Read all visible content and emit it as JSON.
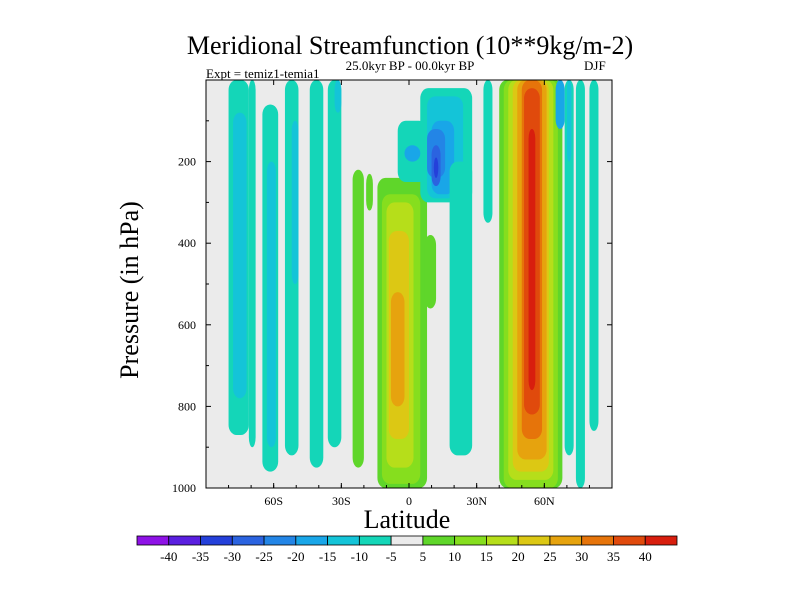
{
  "chart_data": {
    "type": "heatmap",
    "title": "Meridional Streamfunction (10**9kg/m-2)",
    "left_annotation": "Expt = temiz1-temia1",
    "center_annotation": "25.0kyr BP - 00.0kyr BP",
    "right_annotation": "DJF",
    "xlabel": "Latitude",
    "ylabel": "Pressure (in hPa)",
    "xlim": [
      -90,
      90
    ],
    "ylim": [
      1000,
      0
    ],
    "x_ticks": [
      {
        "value": -60,
        "label": "60S"
      },
      {
        "value": -30,
        "label": "30S"
      },
      {
        "value": 0,
        "label": "0"
      },
      {
        "value": 30,
        "label": "30N"
      },
      {
        "value": 60,
        "label": "60N"
      }
    ],
    "y_ticks": [
      {
        "value": 200,
        "label": "200"
      },
      {
        "value": 400,
        "label": "400"
      },
      {
        "value": 600,
        "label": "600"
      },
      {
        "value": 800,
        "label": "800"
      },
      {
        "value": 1000,
        "label": "1000"
      }
    ],
    "colorbar": {
      "levels": [
        "-40",
        "-35",
        "-30",
        "-25",
        "-20",
        "-15",
        "-10",
        "-5",
        "5",
        "10",
        "15",
        "20",
        "25",
        "30",
        "35",
        "40"
      ],
      "colors": [
        "#8e12e6",
        "#5a1fe0",
        "#2440da",
        "#2b63e0",
        "#2385e6",
        "#19a6e8",
        "#14c4d8",
        "#14d6b8",
        "#ebebeb",
        "#5fd62a",
        "#86de1e",
        "#b6de1a",
        "#dcc814",
        "#e6a30e",
        "#e6740a",
        "#e04a0c",
        "#d81e0e"
      ]
    },
    "contour_cells": [
      {
        "lat": [
          -80,
          -71
        ],
        "p": [
          0,
          870
        ],
        "bin": 7
      },
      {
        "lat": [
          -71,
          -68
        ],
        "p": [
          0,
          900
        ],
        "bin": 7
      },
      {
        "lat": [
          -78,
          -72
        ],
        "p": [
          80,
          780
        ],
        "bin": 6
      },
      {
        "lat": [
          -65,
          -58
        ],
        "p": [
          60,
          960
        ],
        "bin": 7
      },
      {
        "lat": [
          -63,
          -59
        ],
        "p": [
          200,
          900
        ],
        "bin": 6
      },
      {
        "lat": [
          -55,
          -49
        ],
        "p": [
          0,
          920
        ],
        "bin": 7
      },
      {
        "lat": [
          -52,
          -49
        ],
        "p": [
          100,
          500
        ],
        "bin": 6
      },
      {
        "lat": [
          -44,
          -38
        ],
        "p": [
          0,
          950
        ],
        "bin": 7
      },
      {
        "lat": [
          -36,
          -30
        ],
        "p": [
          0,
          900
        ],
        "bin": 7
      },
      {
        "lat": [
          -33,
          -30
        ],
        "p": [
          0,
          80
        ],
        "bin": 6
      },
      {
        "lat": [
          -25,
          -20
        ],
        "p": [
          220,
          950
        ],
        "bin": 9
      },
      {
        "lat": [
          -19,
          -16
        ],
        "p": [
          230,
          320
        ],
        "bin": 9
      },
      {
        "lat": [
          -14,
          8
        ],
        "p": [
          240,
          1000
        ],
        "bin": 9
      },
      {
        "lat": [
          -12,
          5
        ],
        "p": [
          280,
          990
        ],
        "bin": 10
      },
      {
        "lat": [
          -10,
          2
        ],
        "p": [
          300,
          950
        ],
        "bin": 11
      },
      {
        "lat": [
          -9,
          0
        ],
        "p": [
          370,
          880
        ],
        "bin": 12
      },
      {
        "lat": [
          -8,
          -2
        ],
        "p": [
          520,
          800
        ],
        "bin": 13
      },
      {
        "lat": [
          7,
          12
        ],
        "p": [
          380,
          560
        ],
        "bin": 9
      },
      {
        "lat": [
          -5,
          8
        ],
        "p": [
          100,
          250
        ],
        "bin": 7
      },
      {
        "lat": [
          5,
          28
        ],
        "p": [
          20,
          300
        ],
        "bin": 7
      },
      {
        "lat": [
          8,
          24
        ],
        "p": [
          40,
          290
        ],
        "bin": 6
      },
      {
        "lat": [
          10,
          20
        ],
        "p": [
          100,
          280
        ],
        "bin": 5
      },
      {
        "lat": [
          -2,
          5
        ],
        "p": [
          160,
          200
        ],
        "bin": 5
      },
      {
        "lat": [
          8,
          16
        ],
        "p": [
          120,
          240
        ],
        "bin": 4
      },
      {
        "lat": [
          10,
          14
        ],
        "p": [
          160,
          260
        ],
        "bin": 3
      },
      {
        "lat": [
          11,
          13
        ],
        "p": [
          190,
          240
        ],
        "bin": 2
      },
      {
        "lat": [
          18,
          28
        ],
        "p": [
          200,
          920
        ],
        "bin": 7
      },
      {
        "lat": [
          33,
          37
        ],
        "p": [
          0,
          350
        ],
        "bin": 7
      },
      {
        "lat": [
          40,
          68
        ],
        "p": [
          0,
          1000
        ],
        "bin": 9
      },
      {
        "lat": [
          42,
          66
        ],
        "p": [
          0,
          1000
        ],
        "bin": 10
      },
      {
        "lat": [
          44,
          64
        ],
        "p": [
          0,
          980
        ],
        "bin": 11
      },
      {
        "lat": [
          46,
          62
        ],
        "p": [
          0,
          960
        ],
        "bin": 12
      },
      {
        "lat": [
          48,
          61
        ],
        "p": [
          0,
          930
        ],
        "bin": 13
      },
      {
        "lat": [
          50,
          59
        ],
        "p": [
          0,
          880
        ],
        "bin": 14
      },
      {
        "lat": [
          51,
          58
        ],
        "p": [
          20,
          820
        ],
        "bin": 15
      },
      {
        "lat": [
          53,
          56
        ],
        "p": [
          120,
          760
        ],
        "bin": 16
      },
      {
        "lat": [
          69,
          73
        ],
        "p": [
          0,
          920
        ],
        "bin": 7
      },
      {
        "lat": [
          70,
          72
        ],
        "p": [
          0,
          200
        ],
        "bin": 6
      },
      {
        "lat": [
          74,
          78
        ],
        "p": [
          0,
          1000
        ],
        "bin": 7
      },
      {
        "lat": [
          80,
          84
        ],
        "p": [
          0,
          860
        ],
        "bin": 7
      },
      {
        "lat": [
          65,
          69
        ],
        "p": [
          0,
          120
        ],
        "bin": 5
      }
    ]
  }
}
